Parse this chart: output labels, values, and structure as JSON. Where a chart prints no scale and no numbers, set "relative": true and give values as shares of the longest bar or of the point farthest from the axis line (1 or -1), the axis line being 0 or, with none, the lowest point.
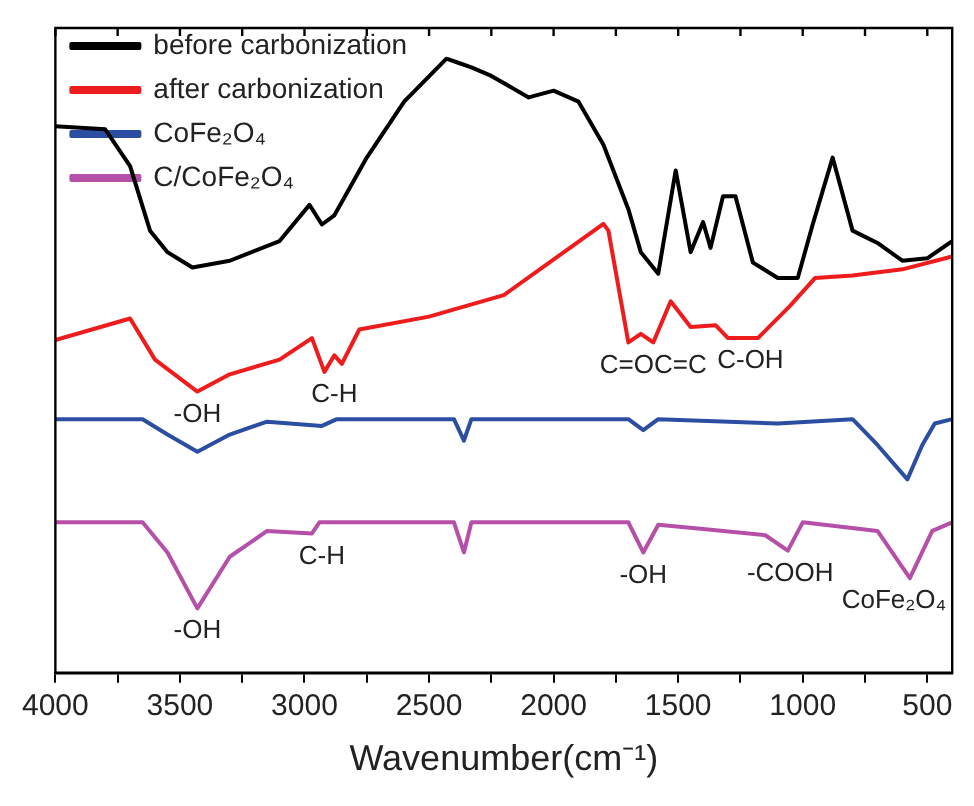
{
  "chart_data": {
    "type": "line",
    "xlabel": "Wavenumber(cm⁻¹)",
    "relative": true,
    "legend": "top left",
    "marker": "none",
    "grid": false,
    "xlim": [
      4000,
      400
    ],
    "xticks": [
      4000,
      {
        "value": 3750,
        "label": null
      },
      3500,
      {
        "value": 3250,
        "label": null
      },
      3000,
      {
        "value": 2750,
        "label": null
      },
      2500,
      {
        "value": 2250,
        "label": null
      },
      2000,
      {
        "value": 1750,
        "label": null
      },
      1500,
      {
        "value": 1250,
        "label": null
      },
      1000,
      {
        "value": 750,
        "label": null
      },
      500
    ],
    "series": [
      {
        "name": "before carbonization",
        "color": "#000000",
        "x": [
          4000,
          3800,
          3700,
          3620,
          3550,
          3450,
          3300,
          3100,
          2980,
          2930,
          2880,
          2750,
          2600,
          2430,
          2380,
          2330,
          2250,
          2100,
          2000,
          1900,
          1800,
          1700,
          1650,
          1580,
          1510,
          1450,
          1400,
          1370,
          1320,
          1270,
          1200,
          1100,
          1020,
          960,
          880,
          800,
          700,
          600,
          500,
          400
        ],
        "values": [
          0.89,
          0.885,
          0.825,
          0.72,
          0.685,
          0.66,
          0.671,
          0.703,
          0.762,
          0.73,
          0.745,
          0.839,
          0.93,
          1.0,
          0.993,
          0.986,
          0.972,
          0.937,
          0.948,
          0.93,
          0.86,
          0.755,
          0.685,
          0.65,
          0.818,
          0.685,
          0.734,
          0.692,
          0.776,
          0.776,
          0.668,
          0.643,
          0.643,
          0.73,
          0.839,
          0.72,
          0.7,
          0.671,
          0.675,
          0.703
        ]
      },
      {
        "name": "after carbonization",
        "color": "#ee1c1c",
        "x": [
          4000,
          3700,
          3600,
          3430,
          3300,
          3100,
          2970,
          2920,
          2880,
          2850,
          2780,
          2500,
          2200,
          1800,
          1780,
          1700,
          1650,
          1600,
          1530,
          1450,
          1350,
          1300,
          1180,
          1050,
          950,
          800,
          600,
          400
        ],
        "values": [
          0.542,
          0.577,
          0.51,
          0.458,
          0.486,
          0.51,
          0.545,
          0.49,
          0.517,
          0.503,
          0.559,
          0.58,
          0.615,
          0.731,
          0.72,
          0.538,
          0.552,
          0.538,
          0.605,
          0.563,
          0.566,
          0.545,
          0.545,
          0.598,
          0.643,
          0.647,
          0.657,
          0.678
        ]
      },
      {
        "name": "CoFe₂O₄",
        "color": "#2b4ea2",
        "x": [
          4000,
          3650,
          3550,
          3430,
          3300,
          3150,
          2930,
          2870,
          2400,
          2360,
          2330,
          1700,
          1640,
          1580,
          1100,
          800,
          700,
          580,
          520,
          470,
          400
        ],
        "values": [
          0.413,
          0.413,
          0.388,
          0.36,
          0.388,
          0.409,
          0.402,
          0.413,
          0.413,
          0.378,
          0.413,
          0.413,
          0.395,
          0.413,
          0.406,
          0.413,
          0.371,
          0.315,
          0.371,
          0.406,
          0.413
        ]
      },
      {
        "name": "C/CoFe₂O₄",
        "color": "#b64fa8",
        "x": [
          4000,
          3650,
          3550,
          3430,
          3300,
          3150,
          2970,
          2940,
          2400,
          2360,
          2330,
          1700,
          1640,
          1580,
          1400,
          1150,
          1060,
          1000,
          700,
          570,
          480,
          400
        ],
        "values": [
          0.245,
          0.245,
          0.196,
          0.105,
          0.189,
          0.231,
          0.227,
          0.245,
          0.245,
          0.196,
          0.245,
          0.245,
          0.196,
          0.241,
          0.234,
          0.224,
          0.199,
          0.245,
          0.231,
          0.154,
          0.231,
          0.245
        ]
      }
    ],
    "annotations": [
      {
        "text": "-OH",
        "x": 3430,
        "y": 0.458
      },
      {
        "text": "C-H",
        "x": 2880,
        "y": 0.49
      },
      {
        "text": "C=OC=C",
        "x": 1600,
        "y": 0.538
      },
      {
        "text": "C-OH",
        "x": 1210,
        "y": 0.545
      },
      {
        "text": "C-H",
        "x": 2930,
        "y": 0.227
      },
      {
        "text": "-OH",
        "x": 3430,
        "y": 0.105
      },
      {
        "text": "-OH",
        "x": 1640,
        "y": 0.196
      },
      {
        "text": "-COOH",
        "x": 1050,
        "y": 0.199
      },
      {
        "text": "CoFe₂O₄",
        "x": 570,
        "y": 0.154
      }
    ]
  }
}
